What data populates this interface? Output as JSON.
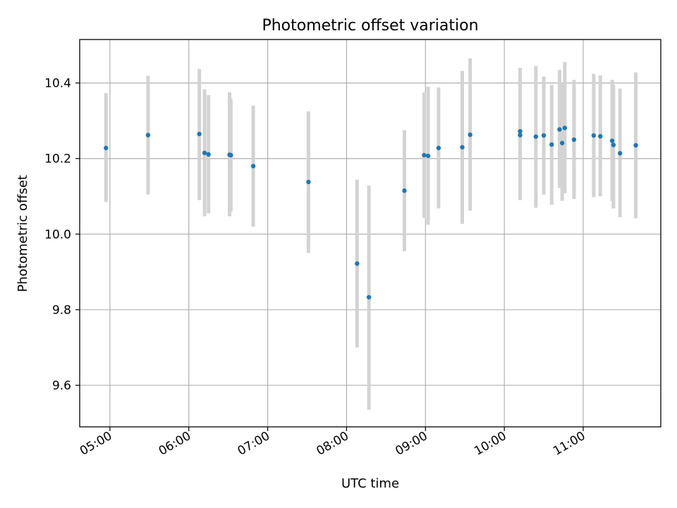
{
  "chart_data": {
    "type": "scatter",
    "title": "Photometric offset variation",
    "xlabel": "UTC time",
    "ylabel": "Photometric offset",
    "xlim": [
      "04:37",
      "11:59"
    ],
    "ylim": [
      9.49,
      10.515
    ],
    "x_ticks": [
      "05:00",
      "06:00",
      "07:00",
      "08:00",
      "09:00",
      "10:00",
      "11:00"
    ],
    "y_ticks": [
      9.6,
      9.8,
      10.0,
      10.2,
      10.4
    ],
    "grid": true,
    "marker_color": "#1f77b4",
    "errorbar_color": "#d3d3d3",
    "points": [
      {
        "x": "04:57",
        "y": 10.228,
        "ylow": 10.085,
        "yhigh": 10.373
      },
      {
        "x": "05:29",
        "y": 10.262,
        "ylow": 10.105,
        "yhigh": 10.419
      },
      {
        "x": "06:08",
        "y": 10.265,
        "ylow": 10.09,
        "yhigh": 10.437
      },
      {
        "x": "06:12",
        "y": 10.215,
        "ylow": 10.047,
        "yhigh": 10.383
      },
      {
        "x": "06:15",
        "y": 10.211,
        "ylow": 10.055,
        "yhigh": 10.368
      },
      {
        "x": "06:31",
        "y": 10.21,
        "ylow": 10.047,
        "yhigh": 10.375
      },
      {
        "x": "06:32",
        "y": 10.209,
        "ylow": 10.06,
        "yhigh": 10.358
      },
      {
        "x": "06:49",
        "y": 10.18,
        "ylow": 10.02,
        "yhigh": 10.34
      },
      {
        "x": "07:31",
        "y": 10.138,
        "ylow": 9.95,
        "yhigh": 10.325
      },
      {
        "x": "08:08",
        "y": 9.922,
        "ylow": 9.7,
        "yhigh": 10.144
      },
      {
        "x": "08:17",
        "y": 9.833,
        "ylow": 9.535,
        "yhigh": 10.128
      },
      {
        "x": "08:44",
        "y": 10.115,
        "ylow": 9.955,
        "yhigh": 10.275
      },
      {
        "x": "08:59",
        "y": 10.209,
        "ylow": 10.043,
        "yhigh": 10.375
      },
      {
        "x": "09:02",
        "y": 10.207,
        "ylow": 10.025,
        "yhigh": 10.39
      },
      {
        "x": "09:10",
        "y": 10.228,
        "ylow": 10.068,
        "yhigh": 10.388
      },
      {
        "x": "09:28",
        "y": 10.23,
        "ylow": 10.027,
        "yhigh": 10.432
      },
      {
        "x": "09:34",
        "y": 10.263,
        "ylow": 10.062,
        "yhigh": 10.465
      },
      {
        "x": "10:12",
        "y": 10.272,
        "ylow": 10.102,
        "yhigh": 10.44
      },
      {
        "x": "10:12",
        "y": 10.262,
        "ylow": 10.09,
        "yhigh": 10.432
      },
      {
        "x": "10:24",
        "y": 10.258,
        "ylow": 10.07,
        "yhigh": 10.445
      },
      {
        "x": "10:30",
        "y": 10.261,
        "ylow": 10.105,
        "yhigh": 10.417
      },
      {
        "x": "10:36",
        "y": 10.237,
        "ylow": 10.078,
        "yhigh": 10.395
      },
      {
        "x": "10:42",
        "y": 10.277,
        "ylow": 10.122,
        "yhigh": 10.435
      },
      {
        "x": "10:44",
        "y": 10.241,
        "ylow": 10.088,
        "yhigh": 10.398
      },
      {
        "x": "10:46",
        "y": 10.281,
        "ylow": 10.108,
        "yhigh": 10.455
      },
      {
        "x": "10:53",
        "y": 10.25,
        "ylow": 10.093,
        "yhigh": 10.408
      },
      {
        "x": "11:08",
        "y": 10.261,
        "ylow": 10.098,
        "yhigh": 10.424
      },
      {
        "x": "11:13",
        "y": 10.259,
        "ylow": 10.1,
        "yhigh": 10.42
      },
      {
        "x": "11:22",
        "y": 10.247,
        "ylow": 10.088,
        "yhigh": 10.408
      },
      {
        "x": "11:23",
        "y": 10.236,
        "ylow": 10.068,
        "yhigh": 10.395
      },
      {
        "x": "11:28",
        "y": 10.214,
        "ylow": 10.045,
        "yhigh": 10.385
      },
      {
        "x": "11:40",
        "y": 10.235,
        "ylow": 10.042,
        "yhigh": 10.428
      }
    ]
  }
}
